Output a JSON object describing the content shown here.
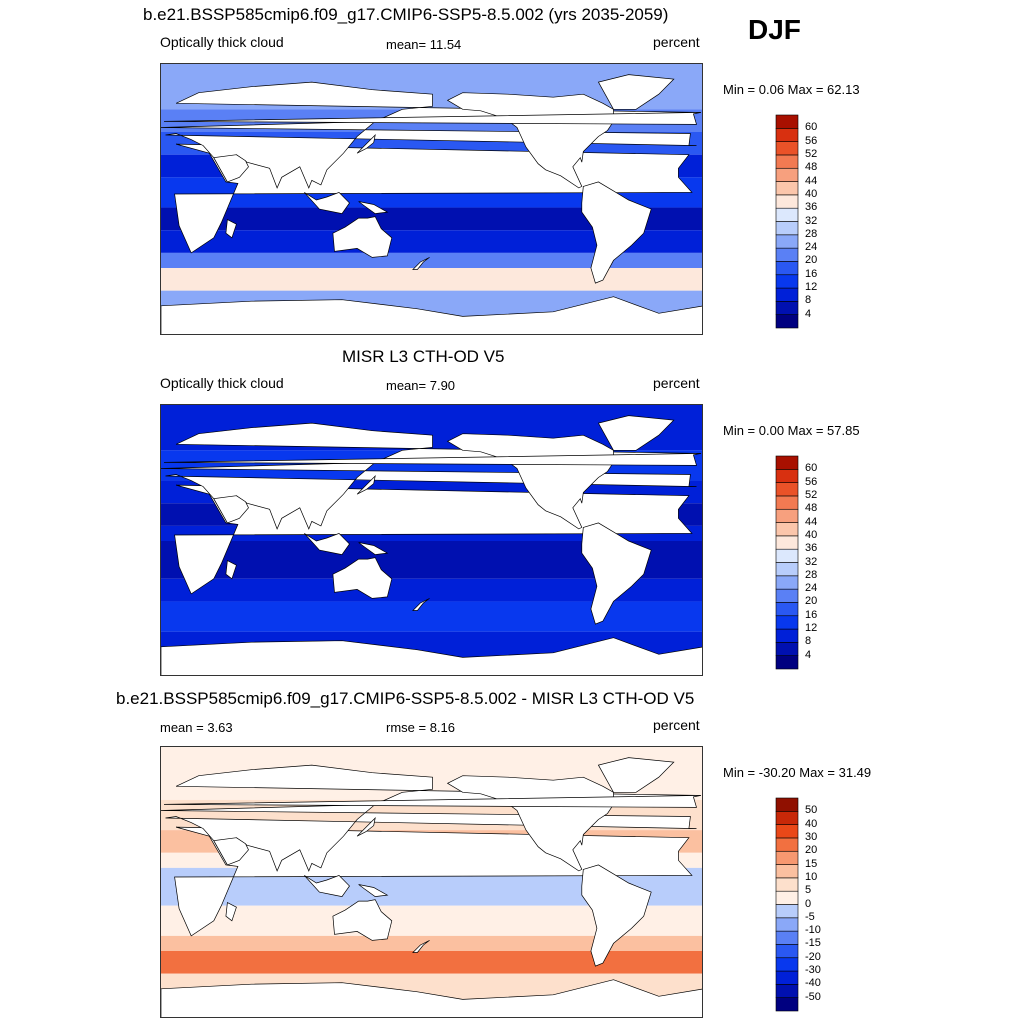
{
  "season": "DJF",
  "panels": [
    {
      "title": "b.e21.BSSP585cmip6.f09_g17.CMIP6-SSP5-8.5.002 (yrs 2035-2059)",
      "left_label": "Optically thick cloud",
      "center_label": "mean=  11.54",
      "right_label": "percent",
      "minmax": "Min =   0.06 Max =  62.13"
    },
    {
      "title": "MISR L3 CTH-OD V5",
      "left_label": "Optically thick cloud",
      "center_label": "mean=   7.90",
      "right_label": "percent",
      "minmax": "Min =   0.00 Max =  57.85"
    },
    {
      "title": "b.e21.BSSP585cmip6.f09_g17.CMIP6-SSP5-8.5.002 - MISR L3 CTH-OD V5",
      "left_label": "mean =   3.63",
      "center_label": "rmse =   8.16",
      "right_label": "percent",
      "minmax": "Min = -30.20 Max =  31.49"
    }
  ],
  "chart_data": [
    {
      "type": "heatmap",
      "title": "b.e21.BSSP585cmip6.f09_g17.CMIP6-SSP5-8.5.002 (yrs 2035-2059)",
      "variable": "Optically thick cloud",
      "units": "percent",
      "mean": 11.54,
      "min": 0.06,
      "max": 62.13,
      "colorbar_levels": [
        4,
        8,
        12,
        16,
        20,
        24,
        28,
        32,
        36,
        40,
        44,
        48,
        52,
        56,
        60
      ],
      "colorbar_colors": [
        "#000080",
        "#0010b0",
        "#0020d8",
        "#0838ee",
        "#2a58f2",
        "#5a80f5",
        "#8aa8f8",
        "#b8cdfb",
        "#dce8fd",
        "#fde8dc",
        "#fbc6ab",
        "#f7a07e",
        "#f27a52",
        "#ea5228",
        "#d83010",
        "#a81000"
      ]
    },
    {
      "type": "heatmap",
      "title": "MISR L3 CTH-OD V5",
      "variable": "Optically thick cloud",
      "units": "percent",
      "mean": 7.9,
      "min": 0.0,
      "max": 57.85,
      "colorbar_levels": [
        4,
        8,
        12,
        16,
        20,
        24,
        28,
        32,
        36,
        40,
        44,
        48,
        52,
        56,
        60
      ],
      "colorbar_colors": [
        "#000080",
        "#0010b0",
        "#0020d8",
        "#0838ee",
        "#2a58f2",
        "#5a80f5",
        "#8aa8f8",
        "#b8cdfb",
        "#dce8fd",
        "#fde8dc",
        "#fbc6ab",
        "#f7a07e",
        "#f27a52",
        "#ea5228",
        "#d83010",
        "#a81000"
      ]
    },
    {
      "type": "heatmap",
      "title": "b.e21.BSSP585cmip6.f09_g17.CMIP6-SSP5-8.5.002 - MISR L3 CTH-OD V5",
      "units": "percent",
      "mean": 3.63,
      "rmse": 8.16,
      "min": -30.2,
      "max": 31.49,
      "colorbar_levels": [
        -50,
        -40,
        -30,
        -20,
        -15,
        -10,
        -5,
        0,
        5,
        10,
        15,
        20,
        30,
        40,
        50
      ],
      "colorbar_colors": [
        "#000080",
        "#0010b0",
        "#0020d8",
        "#0838ee",
        "#2a58f2",
        "#5a80f5",
        "#8aa8f8",
        "#b8cdfb",
        "#fff0e6",
        "#fde0cc",
        "#fbc0a0",
        "#f79870",
        "#f27040",
        "#ea4818",
        "#c82808",
        "#901000"
      ]
    }
  ]
}
